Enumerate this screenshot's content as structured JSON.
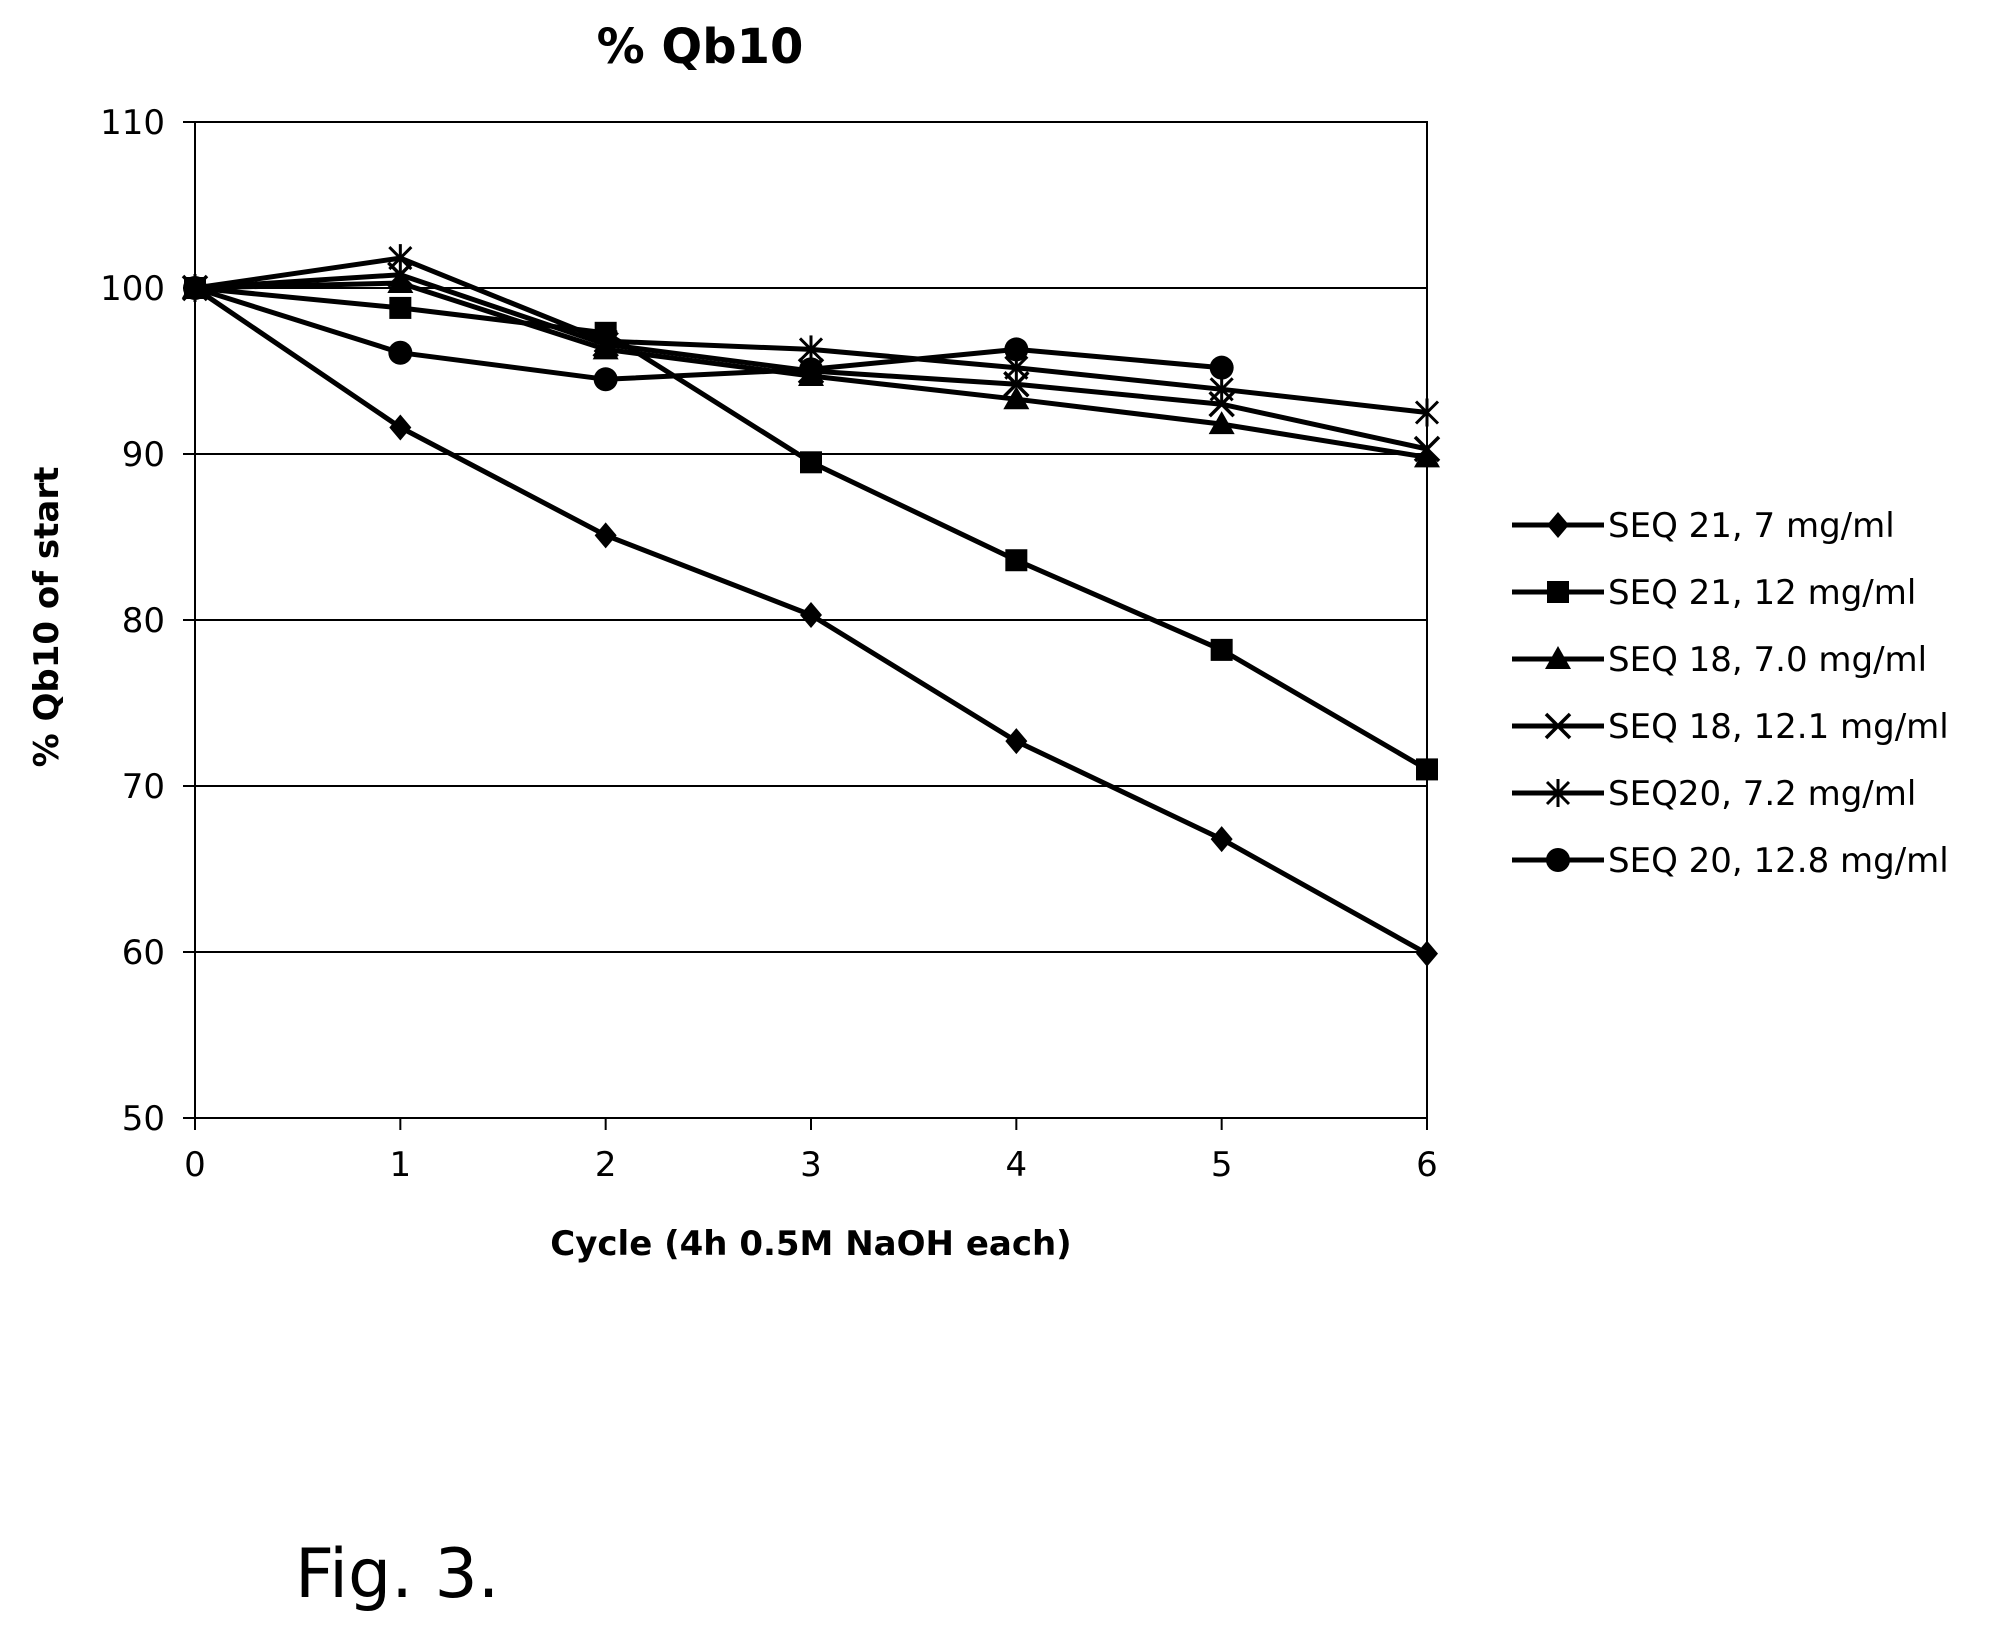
{
  "figure": {
    "caption": "Fig. 3."
  },
  "chart_data": {
    "type": "line",
    "title": "% Qb10",
    "xlabel": "Cycle (4h 0.5M NaOH each)",
    "ylabel": "% Qb10 of start",
    "xlim": [
      0,
      6
    ],
    "ylim": [
      50,
      110
    ],
    "x_ticks": [
      "0",
      "1",
      "2",
      "3",
      "4",
      "5",
      "6"
    ],
    "y_ticks": [
      "50",
      "60",
      "70",
      "80",
      "90",
      "100",
      "110"
    ],
    "grid": "horizontal",
    "legend_position": "right",
    "series": [
      {
        "name": "SEQ 21, 7 mg/ml",
        "marker": "diamond",
        "x": [
          0,
          1,
          2,
          3,
          4,
          5,
          6
        ],
        "values": [
          100,
          91.6,
          85.1,
          80.3,
          72.7,
          66.8,
          59.9
        ]
      },
      {
        "name": "SEQ 21, 12 mg/ml",
        "marker": "square",
        "x": [
          0,
          1,
          2,
          3,
          4,
          5,
          6
        ],
        "values": [
          100,
          98.8,
          97.3,
          89.5,
          83.6,
          78.2,
          71.0
        ]
      },
      {
        "name": "SEQ 18, 7.0 mg/ml",
        "marker": "triangle",
        "x": [
          0,
          1,
          2,
          3,
          4,
          5,
          6
        ],
        "values": [
          100,
          100.3,
          96.3,
          94.7,
          93.3,
          91.8,
          89.8
        ]
      },
      {
        "name": "SEQ 18, 12.1 mg/ml",
        "marker": "x",
        "x": [
          0,
          1,
          2,
          3,
          4,
          5,
          6
        ],
        "values": [
          100,
          100.8,
          96.6,
          95.0,
          94.2,
          93.0,
          90.3
        ]
      },
      {
        "name": "SEQ20, 7.2 mg/ml",
        "marker": "star",
        "x": [
          0,
          1,
          2,
          3,
          4,
          5,
          6
        ],
        "values": [
          100,
          101.8,
          96.8,
          96.3,
          95.2,
          93.9,
          92.5
        ]
      },
      {
        "name": "SEQ 20, 12.8 mg/ml",
        "marker": "circle",
        "x": [
          0,
          1,
          2,
          3,
          4,
          5
        ],
        "values": [
          100,
          96.1,
          94.5,
          95.1,
          96.3,
          95.2
        ]
      }
    ]
  }
}
